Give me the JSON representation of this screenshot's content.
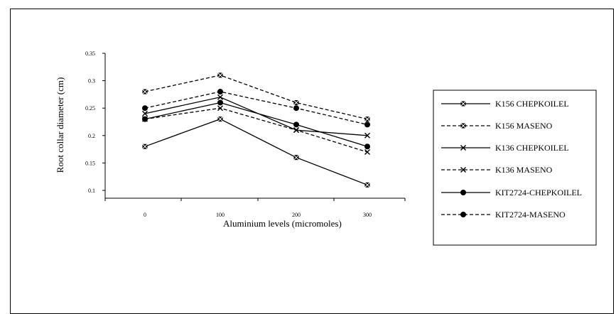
{
  "chart_data": {
    "type": "line",
    "xlabel": "Aluminium levels (micromoles)",
    "ylabel": "Root collar diameter (cm)",
    "categories": [
      "0",
      "100",
      "200",
      "300"
    ],
    "ylim": [
      0.1,
      0.35
    ],
    "yticks": [
      "0.1",
      "0.15",
      "0.2",
      "0.25",
      "0.3",
      "0.35"
    ],
    "grid": false,
    "legend_position": "right",
    "series": [
      {
        "name": "K156 CHEPKOILEL",
        "values": [
          0.18,
          0.23,
          0.16,
          0.11
        ],
        "marker": "square",
        "dash": "solid"
      },
      {
        "name": "K156 MASENO",
        "values": [
          0.28,
          0.31,
          0.26,
          0.23
        ],
        "marker": "square",
        "dash": "dashed"
      },
      {
        "name": "K136 CHEPKOILEL",
        "values": [
          0.24,
          0.27,
          0.21,
          0.2
        ],
        "marker": "x",
        "dash": "solid"
      },
      {
        "name": "K136 MASENO",
        "values": [
          0.23,
          0.25,
          0.21,
          0.17
        ],
        "marker": "x",
        "dash": "dashed"
      },
      {
        "name": "KIT2724-CHEPKOILEL",
        "values": [
          0.23,
          0.26,
          0.22,
          0.18
        ],
        "marker": "circle",
        "dash": "solid"
      },
      {
        "name": "KIT2724-MASENO",
        "values": [
          0.25,
          0.28,
          0.25,
          0.22
        ],
        "marker": "circle",
        "dash": "dashed"
      }
    ]
  }
}
